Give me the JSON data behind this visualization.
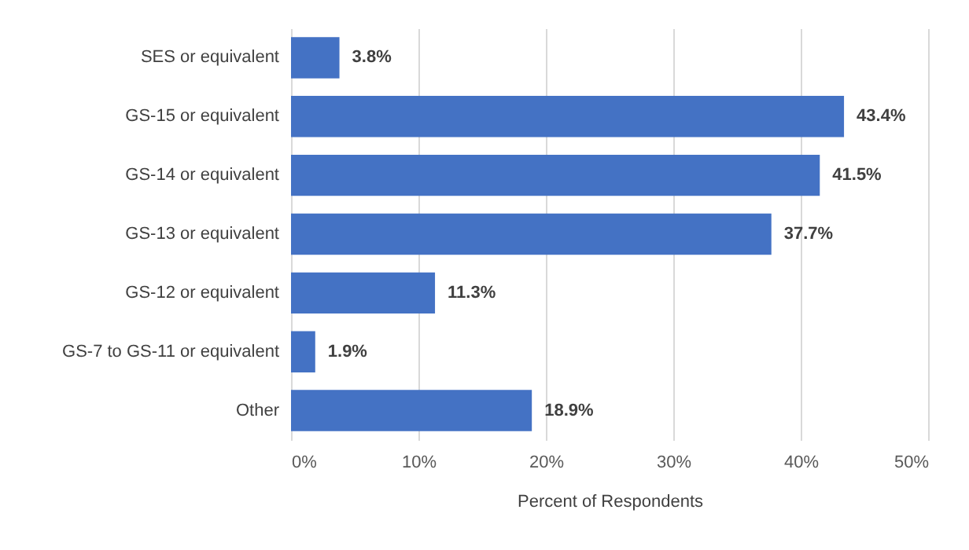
{
  "chart_data": {
    "type": "bar",
    "orientation": "horizontal",
    "xlabel": "Percent of Respondents",
    "categories": [
      "SES or equivalent",
      "GS-15 or equivalent",
      "GS-14 or equivalent",
      "GS-13 or equivalent",
      "GS-12 or equivalent",
      "GS-7 to GS-11 or equivalent",
      "Other"
    ],
    "values": [
      3.8,
      43.4,
      41.5,
      37.7,
      11.3,
      1.9,
      18.9
    ],
    "value_labels": [
      "3.8%",
      "43.4%",
      "41.5%",
      "37.7%",
      "11.3%",
      "1.9%",
      "18.9%"
    ],
    "color": "#4472c4",
    "xlim": [
      0,
      50
    ],
    "xticks": [
      {
        "value": 0,
        "label": "0%"
      },
      {
        "value": 10,
        "label": "10%"
      },
      {
        "value": 20,
        "label": "20%"
      },
      {
        "value": 30,
        "label": "30%"
      },
      {
        "value": 40,
        "label": "40%"
      },
      {
        "value": 50,
        "label": "50%"
      }
    ],
    "grid": "x"
  }
}
